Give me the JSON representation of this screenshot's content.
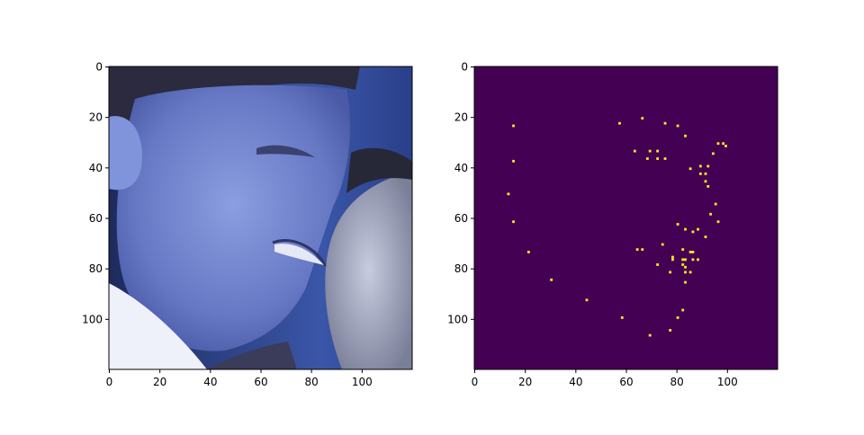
{
  "chart_data": [
    {
      "type": "image",
      "description_kind": "photo",
      "xlim": [
        0,
        120
      ],
      "ylim": [
        120,
        0
      ],
      "xticks": [
        0,
        20,
        40,
        60,
        80,
        100
      ],
      "yticks": [
        0,
        20,
        40,
        60,
        80,
        100
      ],
      "xtick_labels": [
        "0",
        "20",
        "40",
        "60",
        "80",
        "100"
      ],
      "ytick_labels": [
        "0",
        "20",
        "40",
        "60",
        "80",
        "100"
      ],
      "colors": {
        "background_dark": "#2a3a7a",
        "face": "#6f86cc",
        "shirt": "#e8ecf8"
      }
    },
    {
      "type": "heatmap",
      "colormap": "viridis",
      "background_color": "#440154",
      "point_color": "#fde725",
      "xlim": [
        0,
        120
      ],
      "ylim": [
        120,
        0
      ],
      "xticks": [
        0,
        20,
        40,
        60,
        80,
        100
      ],
      "yticks": [
        0,
        20,
        40,
        60,
        80,
        100
      ],
      "xtick_labels": [
        "0",
        "20",
        "40",
        "60",
        "80",
        "100"
      ],
      "ytick_labels": [
        "0",
        "20",
        "40",
        "60",
        "80",
        "100"
      ],
      "points": [
        [
          15,
          23
        ],
        [
          57,
          22
        ],
        [
          66,
          20
        ],
        [
          75,
          22
        ],
        [
          80,
          23
        ],
        [
          83,
          27
        ],
        [
          63,
          33
        ],
        [
          69,
          33
        ],
        [
          72,
          33
        ],
        [
          68,
          36
        ],
        [
          72,
          36
        ],
        [
          75,
          36
        ],
        [
          96,
          30
        ],
        [
          98,
          30
        ],
        [
          99,
          31
        ],
        [
          94,
          34
        ],
        [
          15,
          37
        ],
        [
          85,
          40
        ],
        [
          89,
          39
        ],
        [
          92,
          39
        ],
        [
          89,
          42
        ],
        [
          91,
          42
        ],
        [
          91,
          45
        ],
        [
          92,
          47
        ],
        [
          13,
          50
        ],
        [
          95,
          54
        ],
        [
          15,
          61
        ],
        [
          93,
          58
        ],
        [
          96,
          61
        ],
        [
          80,
          62
        ],
        [
          83,
          64
        ],
        [
          86,
          65
        ],
        [
          88,
          64
        ],
        [
          91,
          67
        ],
        [
          21,
          73
        ],
        [
          64,
          72
        ],
        [
          66,
          72
        ],
        [
          74,
          70
        ],
        [
          82,
          72
        ],
        [
          85,
          73
        ],
        [
          86,
          73
        ],
        [
          78,
          75
        ],
        [
          78,
          76
        ],
        [
          82,
          76
        ],
        [
          83,
          76
        ],
        [
          86,
          76
        ],
        [
          88,
          76
        ],
        [
          72,
          78
        ],
        [
          82,
          78
        ],
        [
          83,
          79
        ],
        [
          77,
          81
        ],
        [
          83,
          81
        ],
        [
          85,
          81
        ],
        [
          83,
          85
        ],
        [
          30,
          84
        ],
        [
          44,
          92
        ],
        [
          82,
          96
        ],
        [
          58,
          99
        ],
        [
          80,
          99
        ],
        [
          77,
          104
        ],
        [
          69,
          106
        ]
      ]
    }
  ]
}
